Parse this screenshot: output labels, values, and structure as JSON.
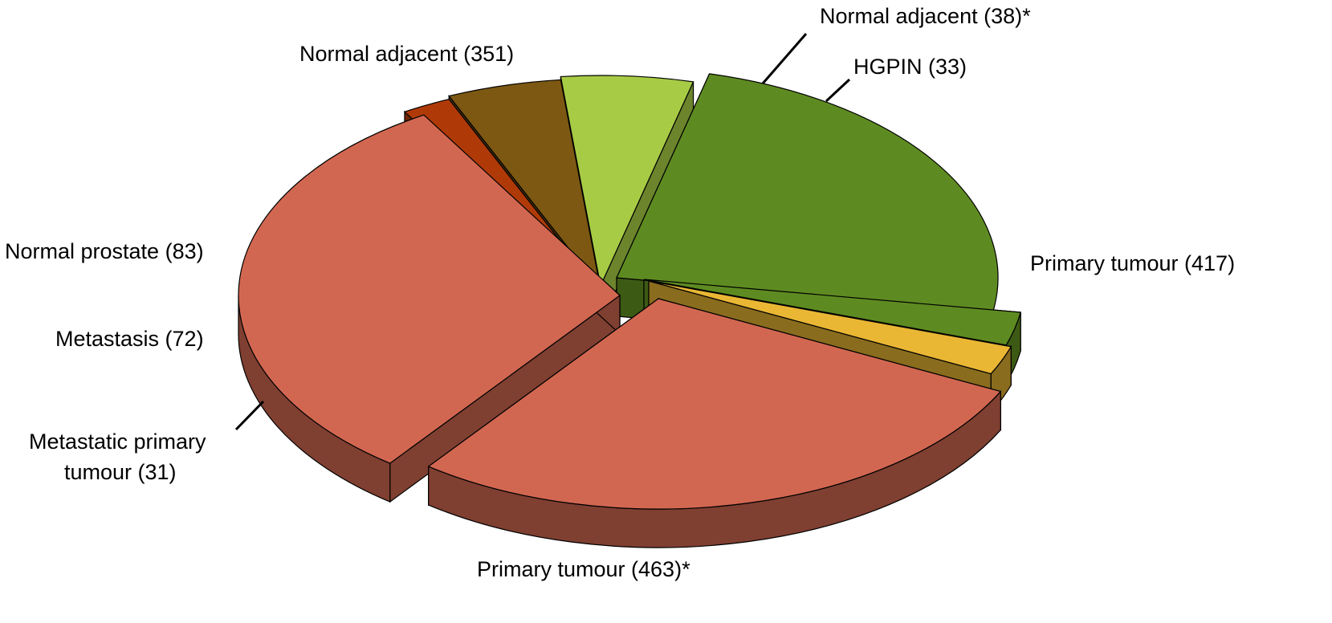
{
  "chart_data": {
    "type": "pie",
    "style": "3d-exploded",
    "title": "",
    "slices": [
      {
        "name": "Normal adjacent (38)*",
        "value": 38,
        "color": "#5e8b21",
        "side_color": "#3d5a14"
      },
      {
        "name": "HGPIN (33)",
        "value": 33,
        "color": "#eab734",
        "side_color": "#8a6c1e"
      },
      {
        "name": "Primary tumour (417)",
        "value": 417,
        "color": "#d26751",
        "side_color": "#7f3f31"
      },
      {
        "name": "Primary tumour (463)*",
        "value": 463,
        "color": "#d26751",
        "side_color": "#7f3f31"
      },
      {
        "name": "Metastatic primary tumour (31)",
        "value": 31,
        "color": "#b03a07",
        "side_color": "#6e2504"
      },
      {
        "name": "Metastasis (72)",
        "value": 72,
        "color": "#7d5812",
        "side_color": "#4e370b"
      },
      {
        "name": "Normal prostate (83)",
        "value": 83,
        "color": "#a8cb45",
        "side_color": "#6c842c"
      },
      {
        "name": "Normal adjacent (351)",
        "value": 351,
        "color": "#5e8b21",
        "side_color": "#3d5a14"
      }
    ]
  },
  "labels": {
    "normal_adjacent_38": "Normal adjacent (38)*",
    "hgpin_33": "HGPIN (33)",
    "primary_tumour_417": "Primary tumour (417)",
    "primary_tumour_463": "Primary tumour (463)*",
    "metastatic_primary_line1": "Metastatic primary",
    "metastatic_primary_line2": "tumour (31)",
    "metastasis_72": "Metastasis (72)",
    "normal_prostate_83": "Normal prostate (83)",
    "normal_adjacent_351": "Normal adjacent (351)"
  }
}
